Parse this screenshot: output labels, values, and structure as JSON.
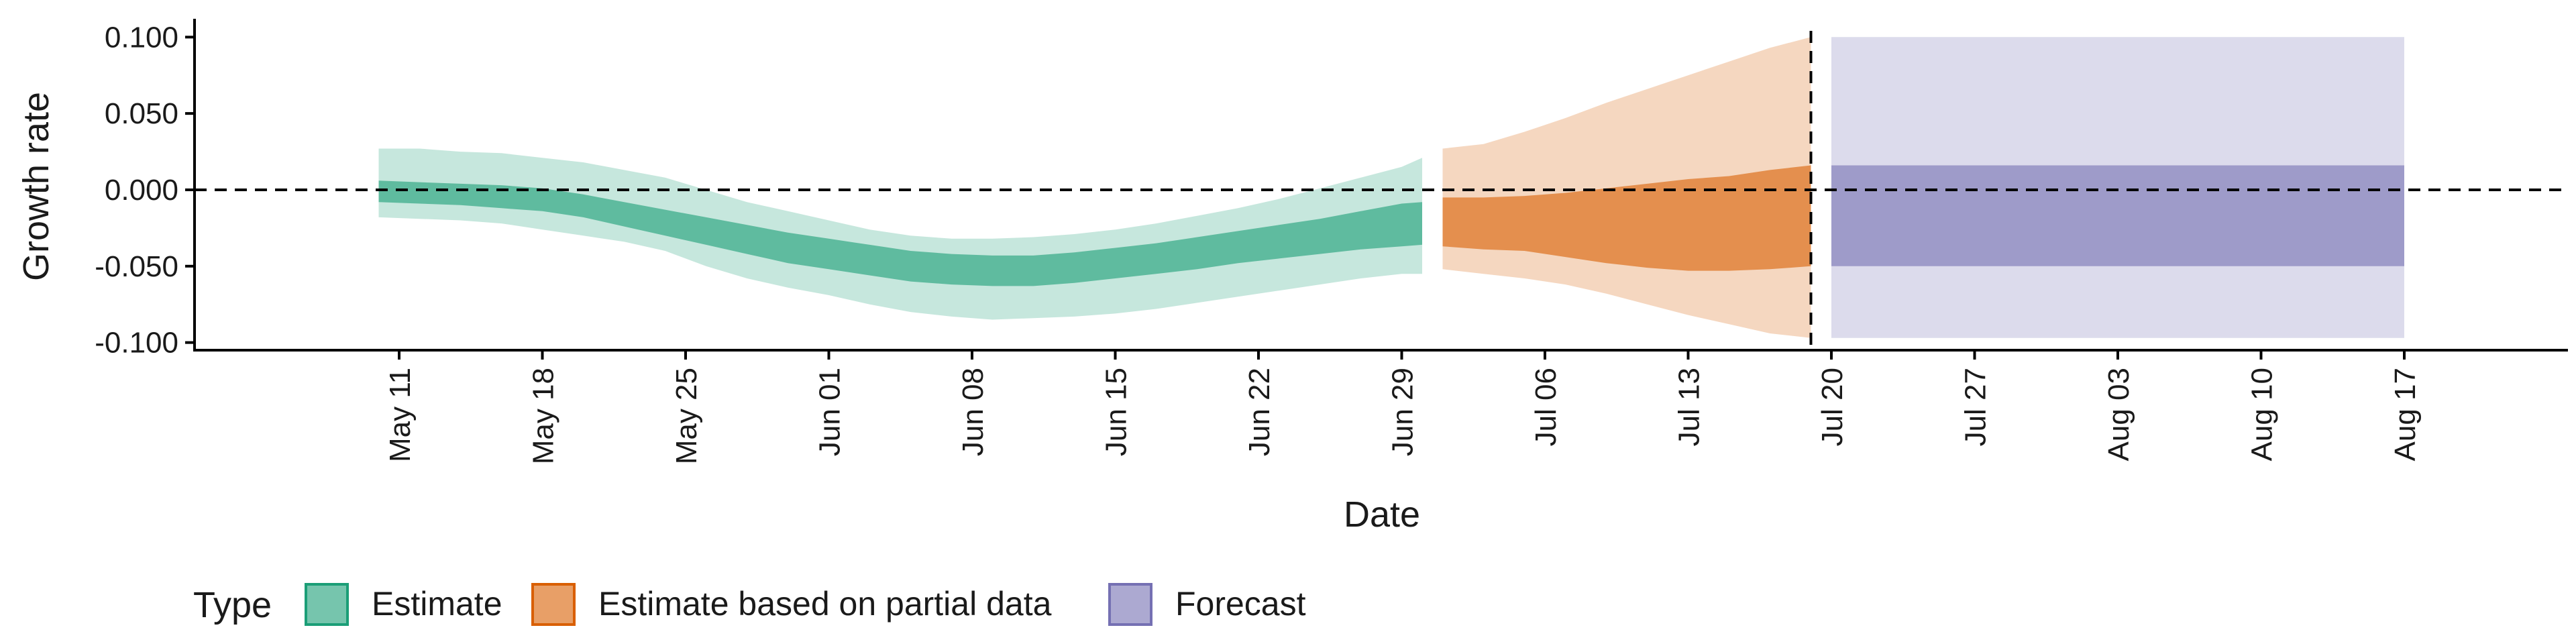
{
  "chart_data": {
    "type": "area",
    "title": "",
    "xlabel": "Date",
    "ylabel": "Growth rate",
    "ylim": [
      -0.105,
      0.112
    ],
    "xlim": [
      "2020-05-01",
      "2020-08-25"
    ],
    "grid": false,
    "y_ticks": [
      -0.1,
      -0.05,
      0.0,
      0.05,
      0.1
    ],
    "y_tick_labels": [
      "-0.100",
      "-0.050",
      "0.000",
      "0.050",
      "0.100"
    ],
    "x_ticks": [
      "2020-05-11",
      "2020-05-18",
      "2020-05-25",
      "2020-06-01",
      "2020-06-08",
      "2020-06-15",
      "2020-06-22",
      "2020-06-29",
      "2020-07-06",
      "2020-07-13",
      "2020-07-20",
      "2020-07-27",
      "2020-08-03",
      "2020-08-10",
      "2020-08-17"
    ],
    "x_tick_labels": [
      "May 11",
      "May 18",
      "May 25",
      "Jun 01",
      "Jun 08",
      "Jun 15",
      "Jun 22",
      "Jun 29",
      "Jul 06",
      "Jul 13",
      "Jul 20",
      "Jul 27",
      "Aug 03",
      "Aug 10",
      "Aug 17"
    ],
    "reference_lines": {
      "horizontal_y": 0.0,
      "vertical_date": "2020-07-19"
    },
    "legend": {
      "title": "Type",
      "position": "bottom-left",
      "items": [
        {
          "label": "Estimate",
          "color": "#1b9e77"
        },
        {
          "label": "Estimate based on partial data",
          "color": "#d95f02"
        },
        {
          "label": "Forecast",
          "color": "#7570b3"
        }
      ]
    },
    "series": [
      {
        "name": "Estimate",
        "color": "#1b9e77",
        "x": [
          "2020-05-10",
          "2020-05-12",
          "2020-05-14",
          "2020-05-16",
          "2020-05-18",
          "2020-05-20",
          "2020-05-22",
          "2020-05-24",
          "2020-05-26",
          "2020-05-28",
          "2020-05-30",
          "2020-06-01",
          "2020-06-03",
          "2020-06-05",
          "2020-06-07",
          "2020-06-09",
          "2020-06-11",
          "2020-06-13",
          "2020-06-15",
          "2020-06-17",
          "2020-06-19",
          "2020-06-21",
          "2020-06-23",
          "2020-06-25",
          "2020-06-27",
          "2020-06-29",
          "2020-06-30"
        ],
        "lower_90": [
          -0.018,
          -0.019,
          -0.02,
          -0.022,
          -0.026,
          -0.03,
          -0.034,
          -0.04,
          -0.05,
          -0.058,
          -0.064,
          -0.069,
          -0.075,
          -0.08,
          -0.083,
          -0.085,
          -0.084,
          -0.083,
          -0.081,
          -0.078,
          -0.074,
          -0.07,
          -0.066,
          -0.062,
          -0.058,
          -0.055,
          -0.055
        ],
        "upper_90": [
          0.027,
          0.027,
          0.025,
          0.024,
          0.021,
          0.018,
          0.013,
          0.008,
          0.0,
          -0.008,
          -0.014,
          -0.02,
          -0.026,
          -0.03,
          -0.032,
          -0.032,
          -0.031,
          -0.029,
          -0.026,
          -0.022,
          -0.017,
          -0.012,
          -0.006,
          0.001,
          0.008,
          0.015,
          0.021
        ],
        "lower_50": [
          -0.008,
          -0.009,
          -0.01,
          -0.012,
          -0.014,
          -0.018,
          -0.024,
          -0.03,
          -0.036,
          -0.042,
          -0.048,
          -0.052,
          -0.056,
          -0.06,
          -0.062,
          -0.063,
          -0.063,
          -0.061,
          -0.058,
          -0.055,
          -0.052,
          -0.048,
          -0.045,
          -0.042,
          -0.039,
          -0.037,
          -0.036
        ],
        "upper_50": [
          0.006,
          0.005,
          0.004,
          0.003,
          0.001,
          -0.003,
          -0.008,
          -0.013,
          -0.018,
          -0.023,
          -0.028,
          -0.032,
          -0.036,
          -0.04,
          -0.042,
          -0.043,
          -0.043,
          -0.041,
          -0.038,
          -0.035,
          -0.031,
          -0.027,
          -0.023,
          -0.019,
          -0.014,
          -0.009,
          -0.008
        ]
      },
      {
        "name": "Estimate based on partial data",
        "color": "#d95f02",
        "x": [
          "2020-07-01",
          "2020-07-03",
          "2020-07-05",
          "2020-07-07",
          "2020-07-09",
          "2020-07-11",
          "2020-07-13",
          "2020-07-15",
          "2020-07-17",
          "2020-07-19"
        ],
        "lower_90": [
          -0.052,
          -0.055,
          -0.058,
          -0.062,
          -0.068,
          -0.075,
          -0.082,
          -0.088,
          -0.094,
          -0.097
        ],
        "upper_90": [
          0.027,
          0.03,
          0.038,
          0.047,
          0.057,
          0.066,
          0.075,
          0.084,
          0.093,
          0.1
        ],
        "lower_50": [
          -0.037,
          -0.039,
          -0.04,
          -0.044,
          -0.048,
          -0.051,
          -0.053,
          -0.053,
          -0.052,
          -0.05
        ],
        "upper_50": [
          -0.005,
          -0.005,
          -0.004,
          -0.002,
          0.001,
          0.004,
          0.007,
          0.009,
          0.013,
          0.016
        ]
      },
      {
        "name": "Forecast",
        "color": "#7570b3",
        "x": [
          "2020-07-20",
          "2020-08-17"
        ],
        "lower_90": [
          -0.097,
          -0.097
        ],
        "upper_90": [
          0.1,
          0.1
        ],
        "lower_50": [
          -0.05,
          -0.05
        ],
        "upper_50": [
          0.016,
          0.016
        ]
      }
    ]
  }
}
